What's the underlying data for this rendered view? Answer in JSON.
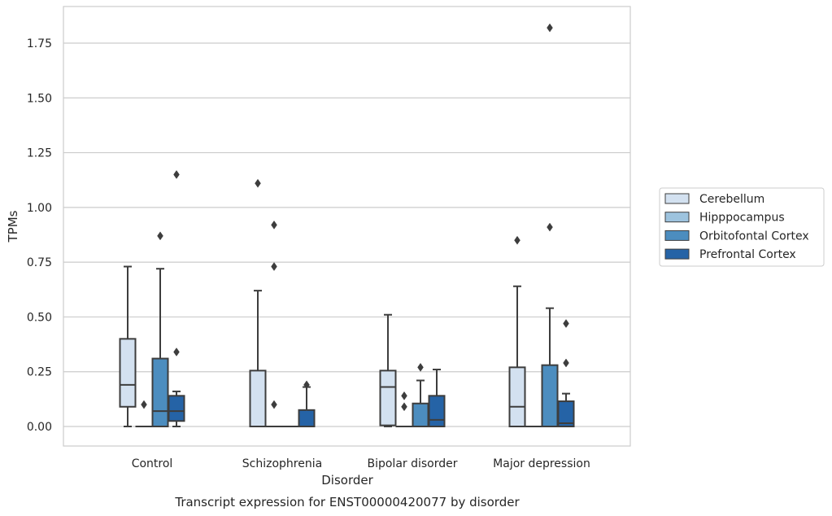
{
  "chart_data": {
    "type": "box",
    "title": "",
    "caption": "Transcript expression for ENST00000420077 by disorder",
    "xlabel": "Disorder",
    "ylabel": "TPMs",
    "ylim": [
      -0.09,
      1.92
    ],
    "yticks": [
      "0.00",
      "0.25",
      "0.50",
      "0.75",
      "1.00",
      "1.25",
      "1.50",
      "1.75"
    ],
    "grid": "horizontal",
    "legend_position": "right",
    "categories": [
      "Control",
      "Schizophrenia",
      "Bipolar disorder",
      "Major depression"
    ],
    "series": [
      {
        "name": "Cerebellum",
        "color": "#d3e1f0",
        "boxes": [
          {
            "whisker_low": 0.0,
            "q1": 0.09,
            "median": 0.19,
            "q3": 0.4,
            "whisker_high": 0.73,
            "outliers": []
          },
          {
            "whisker_low": 0.0,
            "q1": 0.0,
            "median": 0.0,
            "q3": 0.255,
            "whisker_high": 0.62,
            "outliers": [
              1.11
            ]
          },
          {
            "whisker_low": 0.0,
            "q1": 0.005,
            "median": 0.18,
            "q3": 0.255,
            "whisker_high": 0.51,
            "outliers": []
          },
          {
            "whisker_low": 0.0,
            "q1": 0.0,
            "median": 0.09,
            "q3": 0.27,
            "whisker_high": 0.64,
            "outliers": [
              0.85
            ]
          }
        ]
      },
      {
        "name": "Hipppocampus",
        "color": "#9dc3de",
        "boxes": [
          {
            "whisker_low": 0.0,
            "q1": 0.0,
            "median": 0.0,
            "q3": 0.0,
            "whisker_high": 0.0,
            "outliers": [
              0.1
            ]
          },
          {
            "whisker_low": 0.0,
            "q1": 0.0,
            "median": 0.0,
            "q3": 0.0,
            "whisker_high": 0.0,
            "outliers": [
              0.1,
              0.73,
              0.92
            ]
          },
          {
            "whisker_low": 0.0,
            "q1": 0.0,
            "median": 0.0,
            "q3": 0.0,
            "whisker_high": 0.0,
            "outliers": [
              0.09,
              0.14
            ]
          },
          {
            "whisker_low": 0.0,
            "q1": 0.0,
            "median": 0.0,
            "q3": 0.0,
            "whisker_high": 0.0,
            "outliers": []
          }
        ]
      },
      {
        "name": "Orbitofontal Cortex",
        "color": "#4c8dbf",
        "boxes": [
          {
            "whisker_low": 0.0,
            "q1": 0.0,
            "median": 0.07,
            "q3": 0.31,
            "whisker_high": 0.72,
            "outliers": [
              0.87
            ]
          },
          {
            "whisker_low": 0.0,
            "q1": 0.0,
            "median": 0.0,
            "q3": 0.0,
            "whisker_high": 0.0,
            "outliers": []
          },
          {
            "whisker_low": 0.0,
            "q1": 0.0,
            "median": 0.0,
            "q3": 0.105,
            "whisker_high": 0.21,
            "outliers": [
              0.27
            ]
          },
          {
            "whisker_low": 0.0,
            "q1": 0.0,
            "median": 0.0,
            "q3": 0.28,
            "whisker_high": 0.54,
            "outliers": [
              0.91,
              1.82
            ]
          }
        ]
      },
      {
        "name": "Prefrontal Cortex",
        "color": "#2563a6",
        "boxes": [
          {
            "whisker_low": 0.0,
            "q1": 0.025,
            "median": 0.07,
            "q3": 0.14,
            "whisker_high": 0.16,
            "outliers": [
              0.34,
              1.15
            ]
          },
          {
            "whisker_low": 0.0,
            "q1": 0.0,
            "median": 0.0,
            "q3": 0.075,
            "whisker_high": 0.18,
            "outliers": [
              0.19
            ]
          },
          {
            "whisker_low": 0.0,
            "q1": 0.0,
            "median": 0.03,
            "q3": 0.14,
            "whisker_high": 0.26,
            "outliers": []
          },
          {
            "whisker_low": 0.0,
            "q1": 0.0,
            "median": 0.015,
            "q3": 0.115,
            "whisker_high": 0.15,
            "outliers": [
              0.29,
              0.47
            ]
          }
        ]
      }
    ]
  }
}
